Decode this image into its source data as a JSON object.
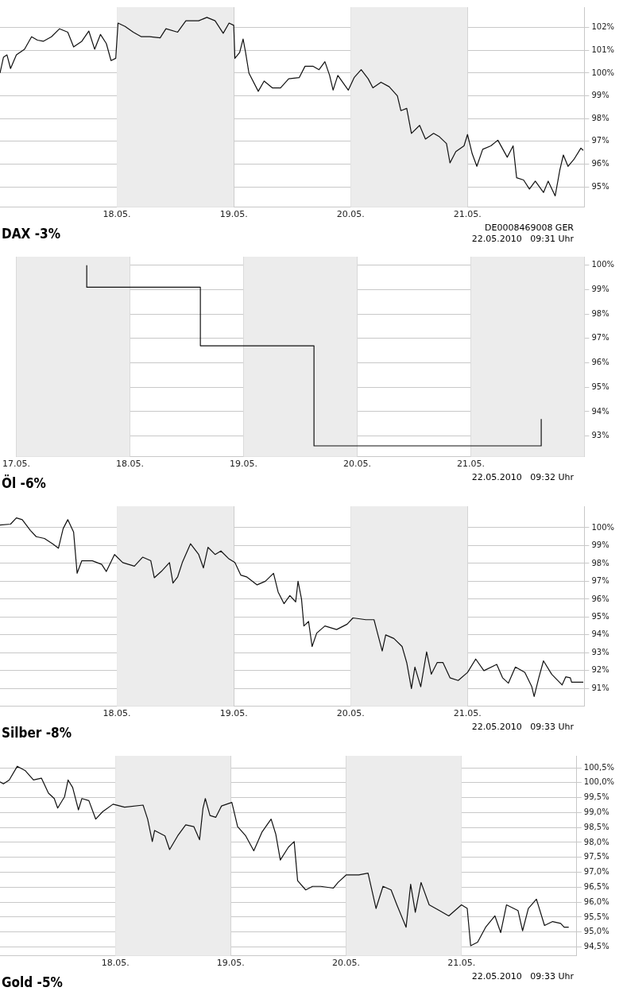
{
  "chart_data": [
    {
      "type": "line",
      "title": "DAX -3%",
      "color": "#111111",
      "marker": "none",
      "grid": true,
      "x": [
        "--05-17T00:00",
        "--05-17T00:43",
        "--05-17T01:26",
        "--05-17T02:10",
        "--05-17T03:22",
        "--05-17T05:02",
        "--05-17T06:29",
        "--05-17T07:41",
        "--05-17T08:53",
        "--05-17T10:34",
        "--05-17T12:14",
        "--05-17T13:55",
        "--05-17T15:07",
        "--05-17T16:48",
        "--05-17T18:14",
        "--05-17T19:26",
        "--05-17T20:38",
        "--05-17T21:50",
        "--05-17T22:48",
        "--05-17T23:46",
        "--05-18T00:14",
        "--05-18T01:41",
        "--05-18T03:22",
        "--05-18T05:02",
        "--05-18T06:43",
        "--05-18T08:53",
        "--05-18T10:05",
        "--05-18T12:29",
        "--05-18T14:10",
        "--05-18T16:48",
        "--05-18T18:29",
        "--05-18T20:10",
        "--05-18T21:50",
        "--05-18T23:02",
        "--05-19T00:00",
        "--05-19T00:14",
        "--05-19T01:12",
        "--05-19T01:55",
        "--05-19T02:24",
        "--05-19T03:07",
        "--05-19T05:02",
        "--05-19T06:14",
        "--05-19T07:55",
        "--05-19T09:36",
        "--05-19T11:17",
        "--05-19T13:26",
        "--05-19T14:38",
        "--05-19T16:19",
        "--05-19T17:31",
        "--05-19T18:43",
        "--05-19T19:41",
        "--05-19T20:24",
        "--05-19T21:22",
        "--05-19T23:31",
        "--05-20T00:43",
        "--05-20T02:10",
        "--05-20T03:36",
        "--05-20T04:34",
        "--05-20T06:14",
        "--05-20T07:55",
        "--05-20T09:36",
        "--05-20T10:19",
        "--05-20T11:31",
        "--05-20T12:29",
        "--05-20T14:10",
        "--05-20T15:22",
        "--05-20T17:02",
        "--05-20T18:14",
        "--05-20T19:41",
        "--05-20T20:24",
        "--05-20T21:36",
        "--05-20T23:17",
        "--05-21T00:00",
        "--05-21T00:58",
        "--05-21T01:55",
        "--05-21T03:07",
        "--05-21T04:48",
        "--05-21T06:14",
        "--05-21T08:10",
        "--05-21T09:22",
        "--05-21T10:05",
        "--05-21T11:31",
        "--05-21T12:43",
        "--05-21T13:55",
        "--05-21T15:36",
        "--05-21T16:34",
        "--05-21T18:00",
        "--05-21T18:58",
        "--05-21T19:41",
        "--05-21T20:38",
        "--05-21T21:50",
        "--05-21T23:17",
        "--05-21T23:46"
      ],
      "values": [
        100.0,
        100.7,
        100.8,
        100.2,
        100.8,
        101.05,
        101.6,
        101.45,
        101.4,
        101.6,
        101.95,
        101.8,
        101.15,
        101.4,
        101.85,
        101.05,
        101.7,
        101.3,
        100.55,
        100.65,
        102.2,
        102.05,
        101.8,
        101.6,
        101.6,
        101.55,
        101.95,
        101.8,
        102.3,
        102.3,
        102.45,
        102.3,
        101.75,
        102.2,
        102.1,
        100.65,
        100.9,
        101.5,
        100.95,
        100.0,
        99.2,
        99.65,
        99.35,
        99.35,
        99.75,
        99.8,
        100.3,
        100.3,
        100.15,
        100.5,
        99.9,
        99.25,
        99.9,
        99.25,
        99.8,
        100.15,
        99.75,
        99.35,
        99.6,
        99.4,
        99.0,
        98.35,
        98.45,
        97.35,
        97.7,
        97.1,
        97.35,
        97.2,
        96.9,
        96.05,
        96.55,
        96.8,
        97.3,
        96.45,
        95.9,
        96.65,
        96.8,
        97.05,
        96.3,
        96.8,
        95.4,
        95.3,
        94.9,
        95.25,
        94.75,
        95.25,
        94.6,
        95.75,
        96.4,
        95.9,
        96.2,
        96.7,
        96.6
      ],
      "xlim": [
        "--05-17",
        "--05-22"
      ],
      "xticks": [
        {
          "value": "--05-18",
          "label": "18.05."
        },
        {
          "value": "--05-19",
          "label": "19.05."
        },
        {
          "value": "--05-20",
          "label": "20.05."
        },
        {
          "value": "--05-21",
          "label": "21.05."
        }
      ],
      "ylim": [
        94.1,
        102.9
      ],
      "yticks": [
        {
          "value": 95,
          "label": "95%"
        },
        {
          "value": 96,
          "label": "96%"
        },
        {
          "value": 97,
          "label": "97%"
        },
        {
          "value": 98,
          "label": "98%"
        },
        {
          "value": 99,
          "label": "99%"
        },
        {
          "value": 100,
          "label": "100%"
        },
        {
          "value": 101,
          "label": "101%"
        },
        {
          "value": 102,
          "label": "102%"
        }
      ],
      "bands": [
        {
          "axis": "x",
          "from": "--05-18",
          "to": "--05-19",
          "color": "#ececec"
        },
        {
          "axis": "x",
          "from": "--05-20",
          "to": "--05-21",
          "color": "#ececec"
        }
      ],
      "annotations": [
        "DE0008469008 GER",
        "22.05.2010   09:31 Uhr"
      ]
    },
    {
      "type": "step",
      "title": "Öl -6%",
      "color": "#111111",
      "marker": "none",
      "grid": true,
      "x": [
        "--05-17T14:53",
        "--05-18T14:53",
        "--05-19T14:53",
        "--05-20T14:53",
        "--05-21T14:53",
        "--05-21T14:53"
      ],
      "values": [
        100.0,
        99.1,
        96.7,
        92.6,
        92.6,
        93.7
      ],
      "xlim": [
        "--05-17",
        "--05-22"
      ],
      "xticks": [
        {
          "value": "--05-17",
          "label": "17.05."
        },
        {
          "value": "--05-18",
          "label": "18.05."
        },
        {
          "value": "--05-19",
          "label": "19.05."
        },
        {
          "value": "--05-20",
          "label": "20.05."
        },
        {
          "value": "--05-21",
          "label": "21.05."
        }
      ],
      "ylim": [
        92.15,
        100.35
      ],
      "yticks": [
        {
          "value": 93,
          "label": "93%"
        },
        {
          "value": 94,
          "label": "94%"
        },
        {
          "value": 95,
          "label": "95%"
        },
        {
          "value": 96,
          "label": "96%"
        },
        {
          "value": 97,
          "label": "97%"
        },
        {
          "value": 98,
          "label": "98%"
        },
        {
          "value": 99,
          "label": "99%"
        },
        {
          "value": 100,
          "label": "100%"
        }
      ],
      "bands": [
        {
          "axis": "x",
          "from": "--05-17",
          "to": "--05-18",
          "color": "#ececec"
        },
        {
          "axis": "x",
          "from": "--05-19",
          "to": "--05-20",
          "color": "#ececec"
        },
        {
          "axis": "x",
          "from": "--05-21",
          "to": "--05-22",
          "color": "#ececec"
        }
      ],
      "annotations": [
        "22.05.2010   09:32 Uhr"
      ]
    },
    {
      "type": "line",
      "title": "Silber -8%",
      "color": "#111111",
      "marker": "none",
      "grid": true,
      "x": [
        "--05-17T00:00",
        "--05-17T02:10",
        "--05-17T03:22",
        "--05-17T04:34",
        "--05-17T06:14",
        "--05-17T07:26",
        "--05-17T09:07",
        "--05-17T10:48",
        "--05-17T12:00",
        "--05-17T12:58",
        "--05-17T13:55",
        "--05-17T15:07",
        "--05-17T15:50",
        "--05-17T16:48",
        "--05-17T18:58",
        "--05-17T20:53",
        "--05-17T21:50",
        "--05-17T23:31",
        "--05-18T01:12",
        "--05-18T03:36",
        "--05-18T05:17",
        "--05-18T06:58",
        "--05-18T07:41",
        "--05-18T09:07",
        "--05-18T10:48",
        "--05-18T11:31",
        "--05-18T12:29",
        "--05-18T13:26",
        "--05-18T15:07",
        "--05-18T16:48",
        "--05-18T17:46",
        "--05-18T18:43",
        "--05-18T20:10",
        "--05-18T21:22",
        "--05-18T23:02",
        "--05-19T00:14",
        "--05-19T01:26",
        "--05-19T02:38",
        "--05-19T04:48",
        "--05-19T06:29",
        "--05-19T08:10",
        "--05-19T09:07",
        "--05-19T10:19",
        "--05-19T11:31",
        "--05-19T12:43",
        "--05-19T13:12",
        "--05-19T13:55",
        "--05-19T14:24",
        "--05-19T15:22",
        "--05-19T16:05",
        "--05-19T17:02",
        "--05-19T18:43",
        "--05-19T21:07",
        "--05-19T23:17",
        "--05-20T00:29",
        "--05-20T03:07",
        "--05-20T04:48",
        "--05-20T05:31",
        "--05-20T06:29",
        "--05-20T07:12",
        "--05-20T08:53",
        "--05-20T10:34",
        "--05-20T11:31",
        "--05-20T12:29",
        "--05-20T13:12",
        "--05-20T14:24",
        "--05-20T15:36",
        "--05-20T16:34",
        "--05-20T17:46",
        "--05-20T18:58",
        "--05-20T20:24",
        "--05-20T22:05",
        "--05-21T00:00",
        "--05-21T01:41",
        "--05-21T03:22",
        "--05-21T06:00",
        "--05-21T07:12",
        "--05-21T08:24",
        "--05-21T09:50",
        "--05-21T11:46",
        "--05-21T13:12",
        "--05-21T13:41",
        "--05-21T14:38",
        "--05-21T15:36",
        "--05-21T17:17",
        "--05-21T19:26",
        "--05-21T20:10",
        "--05-21T21:07",
        "--05-21T21:22",
        "--05-21T23:46"
      ],
      "values": [
        100.15,
        100.2,
        100.55,
        100.45,
        99.85,
        99.5,
        99.4,
        99.1,
        98.85,
        99.95,
        100.45,
        99.75,
        97.45,
        98.15,
        98.15,
        97.95,
        97.55,
        98.5,
        98.05,
        97.85,
        98.35,
        98.15,
        97.2,
        97.55,
        98.05,
        96.9,
        97.25,
        98.05,
        99.1,
        98.5,
        97.75,
        98.9,
        98.5,
        98.7,
        98.25,
        98.05,
        97.35,
        97.25,
        96.8,
        97.0,
        97.45,
        96.4,
        95.75,
        96.2,
        95.85,
        97.0,
        96.0,
        94.5,
        94.75,
        93.35,
        94.1,
        94.5,
        94.3,
        94.6,
        94.95,
        94.85,
        94.85,
        94.1,
        93.1,
        94.0,
        93.8,
        93.35,
        92.45,
        91.0,
        92.2,
        91.1,
        93.05,
        91.8,
        92.45,
        92.45,
        91.6,
        91.45,
        91.9,
        92.65,
        92.0,
        92.35,
        91.6,
        91.3,
        92.2,
        91.9,
        91.1,
        90.55,
        91.6,
        92.55,
        91.8,
        91.2,
        91.65,
        91.6,
        91.35,
        91.35
      ],
      "xlim": [
        "--05-17",
        "--05-22"
      ],
      "xticks": [
        {
          "value": "--05-18",
          "label": "18.05."
        },
        {
          "value": "--05-19",
          "label": "19.05."
        },
        {
          "value": "--05-20",
          "label": "20.05."
        },
        {
          "value": "--05-21",
          "label": "21.05."
        }
      ],
      "ylim": [
        90.0,
        101.2
      ],
      "yticks": [
        {
          "value": 91,
          "label": "91%"
        },
        {
          "value": 92,
          "label": "92%"
        },
        {
          "value": 93,
          "label": "93%"
        },
        {
          "value": 94,
          "label": "94%"
        },
        {
          "value": 95,
          "label": "95%"
        },
        {
          "value": 96,
          "label": "96%"
        },
        {
          "value": 97,
          "label": "97%"
        },
        {
          "value": 98,
          "label": "98%"
        },
        {
          "value": 99,
          "label": "99%"
        },
        {
          "value": 100,
          "label": "100%"
        }
      ],
      "bands": [
        {
          "axis": "x",
          "from": "--05-18",
          "to": "--05-19",
          "color": "#ececec"
        },
        {
          "axis": "x",
          "from": "--05-20",
          "to": "--05-21",
          "color": "#ececec"
        }
      ],
      "annotations": [
        "22.05.2010   09:33 Uhr"
      ]
    },
    {
      "type": "line",
      "title": "Gold -5%",
      "color": "#111111",
      "marker": "none",
      "grid": true,
      "x": [
        "--05-17T00:00",
        "--05-17T00:43",
        "--05-17T01:55",
        "--05-17T03:36",
        "--05-17T05:17",
        "--05-17T06:58",
        "--05-17T08:38",
        "--05-17T10:05",
        "--05-17T11:17",
        "--05-17T12:00",
        "--05-17T13:26",
        "--05-17T14:10",
        "--05-17T15:07",
        "--05-17T16:19",
        "--05-17T17:02",
        "--05-17T18:29",
        "--05-17T19:55",
        "--05-17T21:22",
        "--05-17T23:31",
        "--05-18T01:55",
        "--05-18T05:46",
        "--05-18T06:43",
        "--05-18T07:41",
        "--05-18T08:10",
        "--05-18T10:19",
        "--05-18T11:17",
        "--05-18T12:58",
        "--05-18T14:38",
        "--05-18T16:19",
        "--05-18T17:31",
        "--05-18T18:14",
        "--05-18T18:43",
        "--05-18T19:41",
        "--05-18T20:53",
        "--05-18T22:05",
        "--05-19T00:14",
        "--05-19T01:26",
        "--05-19T03:07",
        "--05-19T04:48",
        "--05-19T06:29",
        "--05-19T08:24",
        "--05-19T09:22",
        "--05-19T10:19",
        "--05-19T12:00",
        "--05-19T13:12",
        "--05-19T13:55",
        "--05-19T15:36",
        "--05-19T17:02",
        "--05-19T18:43",
        "--05-19T21:22",
        "--05-19T22:19",
        "--05-20T00:00",
        "--05-20T02:38",
        "--05-20T04:34",
        "--05-20T06:14",
        "--05-20T07:41",
        "--05-20T09:22",
        "--05-20T10:34",
        "--05-20T12:29",
        "--05-20T13:26",
        "--05-20T14:24",
        "--05-20T15:36",
        "--05-20T17:17",
        "--05-20T19:26",
        "--05-20T21:22",
        "--05-21T00:00",
        "--05-21T01:12",
        "--05-21T01:55",
        "--05-21T03:22",
        "--05-21T05:02",
        "--05-21T06:58",
        "--05-21T08:10",
        "--05-21T09:22",
        "--05-21T11:46",
        "--05-21T12:43",
        "--05-21T13:55",
        "--05-21T15:36",
        "--05-21T17:17",
        "--05-21T18:58",
        "--05-21T20:38",
        "--05-21T21:22",
        "--05-21T22:19"
      ],
      "values": [
        100.03,
        99.96,
        100.09,
        100.55,
        100.4,
        100.09,
        100.15,
        99.65,
        99.47,
        99.15,
        99.53,
        100.09,
        99.84,
        99.09,
        99.47,
        99.4,
        98.78,
        99.03,
        99.28,
        99.18,
        99.25,
        98.78,
        98.03,
        98.4,
        98.22,
        97.76,
        98.22,
        98.59,
        98.53,
        98.09,
        99.15,
        99.47,
        98.9,
        98.84,
        99.22,
        99.34,
        98.53,
        98.22,
        97.72,
        98.34,
        98.78,
        98.28,
        97.41,
        97.84,
        98.03,
        96.72,
        96.41,
        96.53,
        96.53,
        96.47,
        96.66,
        96.91,
        96.91,
        96.97,
        95.79,
        96.53,
        96.41,
        95.91,
        95.16,
        96.6,
        95.66,
        96.66,
        95.91,
        95.72,
        95.54,
        95.91,
        95.79,
        94.54,
        94.66,
        95.16,
        95.54,
        94.98,
        95.91,
        95.72,
        95.04,
        95.79,
        96.1,
        95.22,
        95.35,
        95.29,
        95.16,
        95.16
      ],
      "xlim": [
        "--05-17",
        "--05-22"
      ],
      "xticks": [
        {
          "value": "--05-18",
          "label": "18.05."
        },
        {
          "value": "--05-19",
          "label": "19.05."
        },
        {
          "value": "--05-20",
          "label": "20.05."
        },
        {
          "value": "--05-21",
          "label": "21.05."
        }
      ],
      "ylim": [
        94.2,
        100.9
      ],
      "yticks": [
        {
          "value": 94.5,
          "label": "94,5%"
        },
        {
          "value": 95,
          "label": "95,0%"
        },
        {
          "value": 95.5,
          "label": "95,5%"
        },
        {
          "value": 96,
          "label": "96,0%"
        },
        {
          "value": 96.5,
          "label": "96,5%"
        },
        {
          "value": 97,
          "label": "97,0%"
        },
        {
          "value": 97.5,
          "label": "97,5%"
        },
        {
          "value": 98,
          "label": "98,0%"
        },
        {
          "value": 98.5,
          "label": "98,5%"
        },
        {
          "value": 99,
          "label": "99,0%"
        },
        {
          "value": 99.5,
          "label": "99,5%"
        },
        {
          "value": 100,
          "label": "100,0%"
        },
        {
          "value": 100.5,
          "label": "100,5%"
        }
      ],
      "bands": [
        {
          "axis": "x",
          "from": "--05-18",
          "to": "--05-19",
          "color": "#ececec"
        },
        {
          "axis": "x",
          "from": "--05-20",
          "to": "--05-21",
          "color": "#ececec"
        }
      ],
      "annotations": [
        "22.05.2010   09:33 Uhr"
      ]
    }
  ]
}
